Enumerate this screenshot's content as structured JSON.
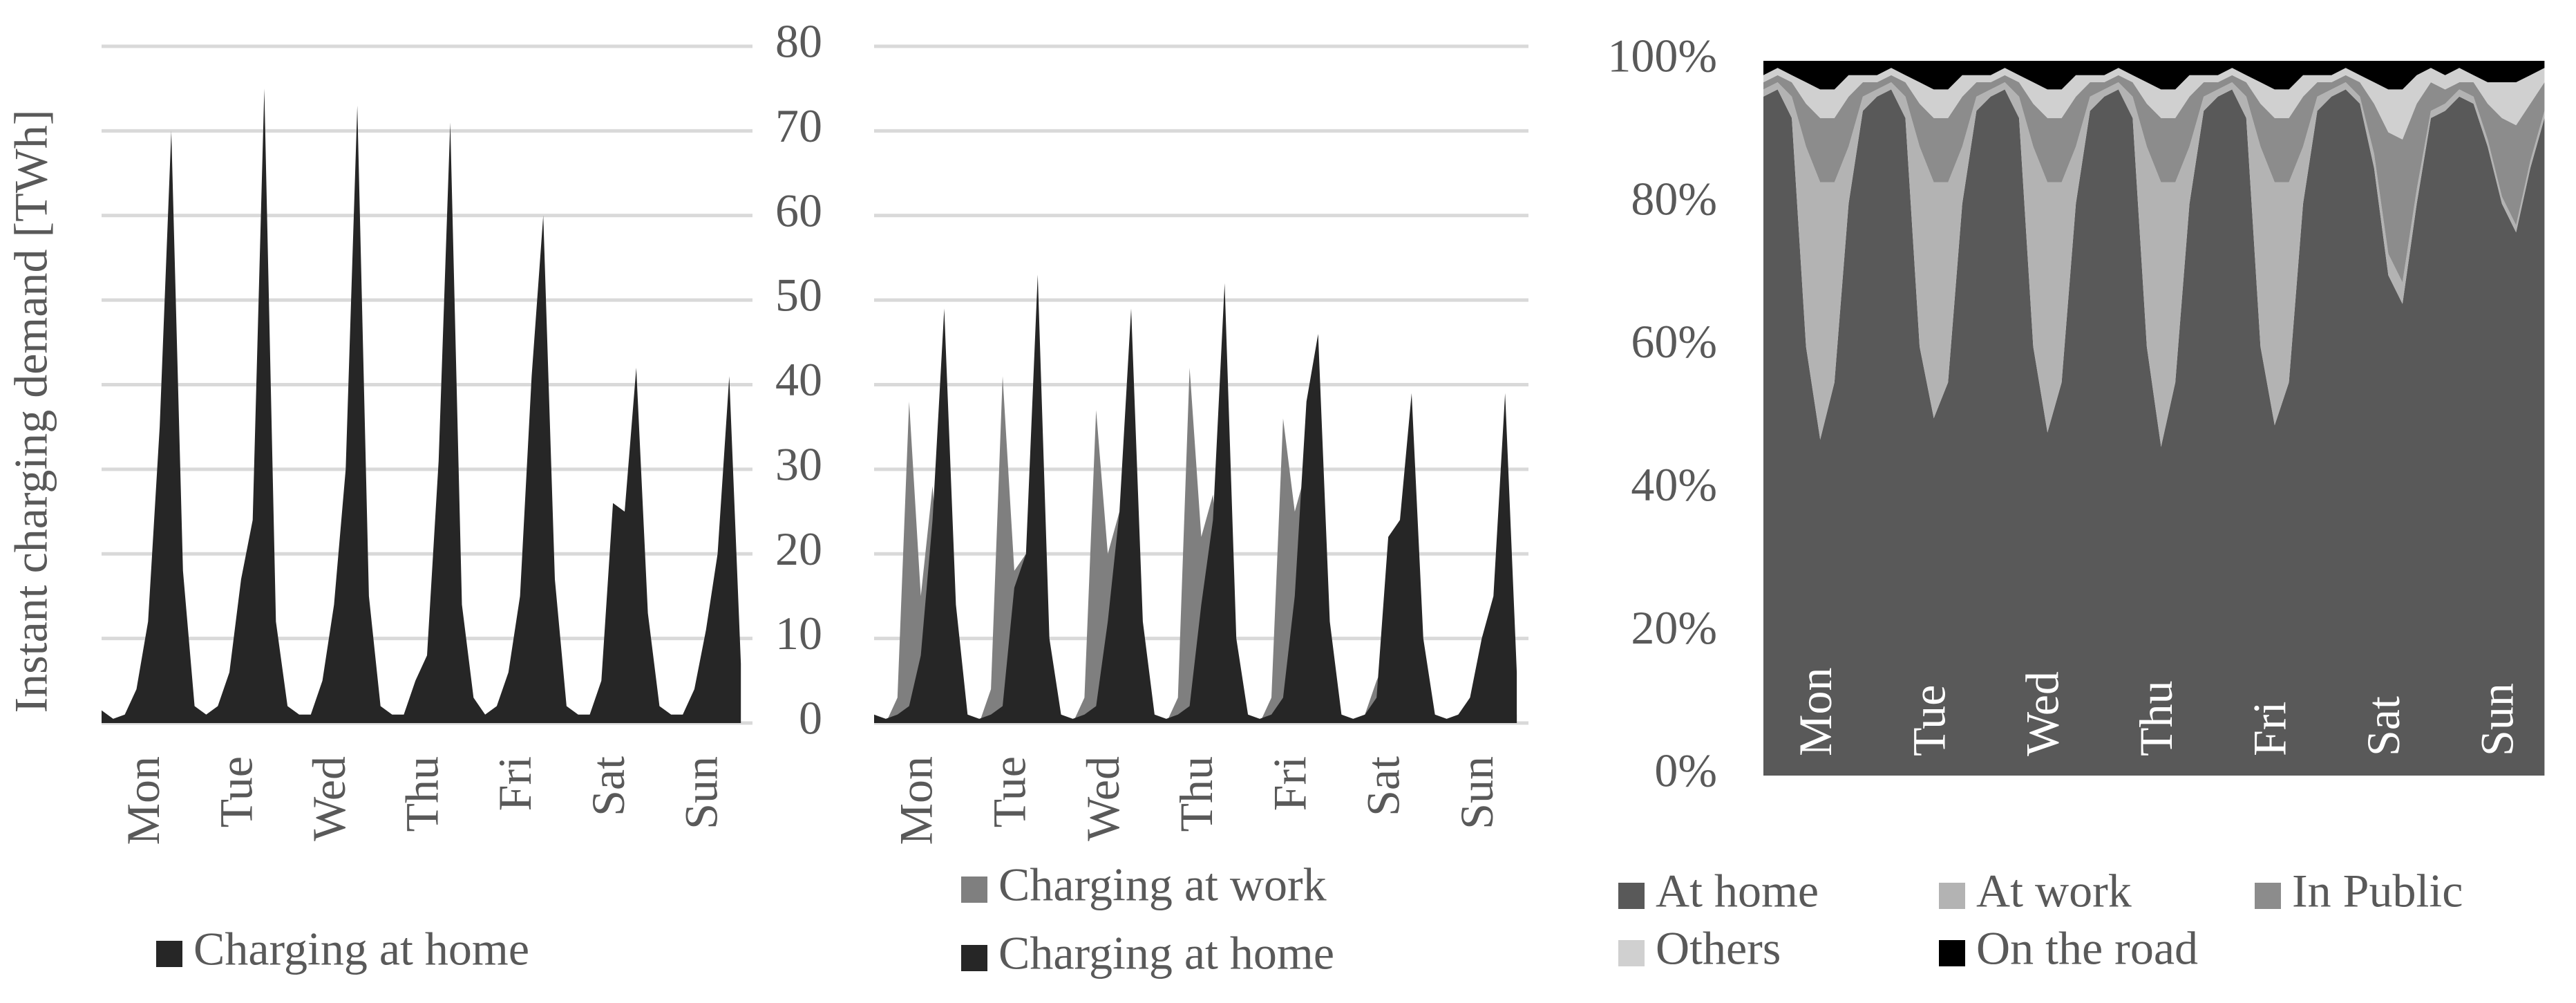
{
  "chart_data": [
    {
      "type": "area",
      "y_label": "Instant charging demand [TWh]",
      "grid": true,
      "x": [
        0,
        3,
        6,
        9,
        12,
        15,
        18,
        21,
        24,
        27,
        30,
        33,
        36,
        39,
        42,
        45,
        48,
        51,
        54,
        57,
        60,
        63,
        66,
        69,
        72,
        75,
        78,
        81,
        84,
        87,
        90,
        93,
        96,
        99,
        102,
        105,
        108,
        111,
        114,
        117,
        120,
        123,
        126,
        129,
        132,
        135,
        138,
        141,
        144,
        147,
        150,
        153,
        156,
        159,
        162,
        165
      ],
      "xlim": [
        0,
        168
      ],
      "xticks": [
        {
          "value": 12,
          "label": "Mon"
        },
        {
          "value": 36,
          "label": "Tue"
        },
        {
          "value": 60,
          "label": "Wed"
        },
        {
          "value": 84,
          "label": "Thu"
        },
        {
          "value": 108,
          "label": "Fri"
        },
        {
          "value": 132,
          "label": "Sat"
        },
        {
          "value": 156,
          "label": "Sun"
        }
      ],
      "ylim": [
        0,
        80
      ],
      "yticks": [
        0,
        10,
        20,
        30,
        40,
        50,
        60,
        70,
        80
      ],
      "series": [
        {
          "name": "Charging at home",
          "color": "#262626",
          "values": [
            1.5,
            0.5,
            1,
            4,
            12,
            35,
            70,
            18,
            2,
            1,
            2,
            6,
            17,
            24,
            75,
            12,
            2,
            1,
            1,
            5,
            14,
            30,
            73,
            15,
            2,
            1,
            1,
            5,
            8,
            31,
            71,
            14,
            3,
            1,
            2,
            6,
            15,
            41,
            60,
            17,
            2,
            1,
            1,
            5,
            26,
            25,
            42,
            13,
            2,
            1,
            1,
            4,
            11,
            20,
            41,
            7
          ]
        }
      ]
    },
    {
      "type": "area",
      "grid": true,
      "x": [
        0,
        3,
        6,
        9,
        12,
        15,
        18,
        21,
        24,
        27,
        30,
        33,
        36,
        39,
        42,
        45,
        48,
        51,
        54,
        57,
        60,
        63,
        66,
        69,
        72,
        75,
        78,
        81,
        84,
        87,
        90,
        93,
        96,
        99,
        102,
        105,
        108,
        111,
        114,
        117,
        120,
        123,
        126,
        129,
        132,
        135,
        138,
        141,
        144,
        147,
        150,
        153,
        156,
        159,
        162,
        165
      ],
      "xlim": [
        0,
        168
      ],
      "xticks": [
        {
          "value": 12,
          "label": "Mon"
        },
        {
          "value": 36,
          "label": "Tue"
        },
        {
          "value": 60,
          "label": "Wed"
        },
        {
          "value": 84,
          "label": "Thu"
        },
        {
          "value": 108,
          "label": "Fri"
        },
        {
          "value": 132,
          "label": "Sat"
        },
        {
          "value": 156,
          "label": "Sun"
        }
      ],
      "ylim": [
        0,
        80
      ],
      "series": [
        {
          "name": "Charging at work",
          "color": "#7f7f7f",
          "values": [
            0,
            0,
            3,
            38,
            15,
            28,
            10,
            1,
            1,
            0,
            4,
            41,
            18,
            20,
            12,
            1,
            1,
            0,
            3,
            37,
            20,
            25,
            10,
            1,
            1,
            0,
            3,
            42,
            22,
            27,
            12,
            1,
            1,
            0,
            3,
            36,
            25,
            30,
            14,
            1,
            1,
            0,
            1,
            5,
            8,
            6,
            4,
            1,
            1,
            0,
            1,
            3,
            2,
            2,
            2,
            1
          ]
        },
        {
          "name": "Charging at home",
          "color": "#262626",
          "values": [
            1,
            0.5,
            1,
            2,
            8,
            24,
            49,
            14,
            1,
            0.5,
            1,
            2,
            16,
            20,
            53,
            10,
            1,
            0.5,
            1,
            2,
            12,
            25,
            49,
            12,
            1,
            0.5,
            1,
            2,
            14,
            24,
            52,
            10,
            1,
            0.5,
            1,
            3,
            15,
            38,
            46,
            12,
            1,
            0.5,
            1,
            3,
            22,
            24,
            39,
            10,
            1,
            0.5,
            1,
            3,
            10,
            15,
            39,
            6
          ]
        }
      ]
    },
    {
      "type": "area",
      "stacked": true,
      "grid": false,
      "x": [
        0,
        3,
        6,
        9,
        12,
        15,
        18,
        21,
        24,
        27,
        30,
        33,
        36,
        39,
        42,
        45,
        48,
        51,
        54,
        57,
        60,
        63,
        66,
        69,
        72,
        75,
        78,
        81,
        84,
        87,
        90,
        93,
        96,
        99,
        102,
        105,
        108,
        111,
        114,
        117,
        120,
        123,
        126,
        129,
        132,
        135,
        138,
        141,
        144,
        147,
        150,
        153,
        156,
        159,
        162,
        165
      ],
      "xlim": [
        0,
        168
      ],
      "xticks": [
        {
          "value": 12,
          "label": "Mon"
        },
        {
          "value": 36,
          "label": "Tue"
        },
        {
          "value": 60,
          "label": "Wed"
        },
        {
          "value": 84,
          "label": "Thu"
        },
        {
          "value": 108,
          "label": "Fri"
        },
        {
          "value": 132,
          "label": "Sat"
        },
        {
          "value": 156,
          "label": "Sun"
        }
      ],
      "ylim": [
        0,
        100
      ],
      "yticks": [
        {
          "value": 0,
          "label": "0%"
        },
        {
          "value": 20,
          "label": "20%"
        },
        {
          "value": 40,
          "label": "40%"
        },
        {
          "value": 60,
          "label": "60%"
        },
        {
          "value": 80,
          "label": "80%"
        },
        {
          "value": 100,
          "label": "100%"
        }
      ],
      "series": [
        {
          "name": "At home",
          "color": "#595959",
          "values": [
            95,
            96,
            92,
            60,
            47,
            55,
            80,
            93,
            95,
            96,
            92,
            60,
            50,
            55,
            80,
            93,
            95,
            96,
            92,
            60,
            48,
            55,
            80,
            93,
            95,
            96,
            92,
            60,
            46,
            55,
            80,
            93,
            95,
            96,
            92,
            60,
            49,
            55,
            80,
            93,
            95,
            96,
            94,
            85,
            70,
            66,
            80,
            92,
            93,
            95,
            94,
            88,
            80,
            76,
            85,
            92
          ]
        },
        {
          "name": "At work",
          "color": "#b3b3b3",
          "values": [
            1,
            1,
            3,
            28,
            36,
            28,
            8,
            2,
            1,
            1,
            3,
            28,
            33,
            28,
            8,
            2,
            1,
            1,
            3,
            28,
            35,
            28,
            8,
            2,
            1,
            1,
            3,
            28,
            37,
            28,
            8,
            2,
            1,
            1,
            3,
            28,
            34,
            28,
            8,
            2,
            1,
            1,
            1,
            2,
            3,
            3,
            2,
            1,
            1,
            1,
            1,
            1,
            1,
            1,
            1,
            1
          ]
        },
        {
          "name": "In Public",
          "color": "#8c8c8c",
          "values": [
            1,
            1,
            2,
            6,
            9,
            9,
            7,
            2,
            1,
            1,
            2,
            6,
            9,
            9,
            7,
            2,
            1,
            1,
            2,
            6,
            9,
            9,
            7,
            2,
            1,
            1,
            2,
            6,
            9,
            9,
            7,
            2,
            1,
            1,
            2,
            6,
            9,
            9,
            7,
            2,
            1,
            1,
            2,
            7,
            17,
            20,
            12,
            4,
            2,
            1,
            2,
            5,
            11,
            14,
            8,
            4
          ]
        },
        {
          "name": "Others",
          "color": "#d0d0d0",
          "values": [
            1,
            1,
            1,
            3,
            4,
            4,
            3,
            1,
            1,
            1,
            1,
            3,
            4,
            4,
            3,
            1,
            1,
            1,
            1,
            3,
            4,
            4,
            3,
            1,
            1,
            1,
            1,
            3,
            4,
            4,
            3,
            1,
            1,
            1,
            1,
            3,
            4,
            4,
            3,
            1,
            1,
            1,
            1,
            3,
            6,
            7,
            4,
            2,
            2,
            2,
            1,
            3,
            5,
            6,
            4,
            2
          ]
        },
        {
          "name": "On the road",
          "color": "#000000",
          "values": [
            2,
            1,
            2,
            3,
            4,
            4,
            2,
            2,
            2,
            1,
            2,
            3,
            4,
            4,
            2,
            2,
            2,
            1,
            2,
            3,
            4,
            4,
            2,
            2,
            2,
            1,
            2,
            3,
            4,
            4,
            2,
            2,
            2,
            1,
            2,
            3,
            4,
            4,
            2,
            2,
            2,
            1,
            2,
            3,
            4,
            4,
            2,
            1,
            2,
            1,
            2,
            3,
            3,
            3,
            2,
            1
          ]
        }
      ]
    }
  ]
}
